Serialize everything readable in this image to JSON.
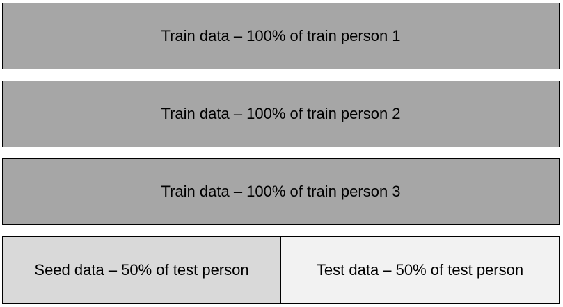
{
  "train_blocks": [
    {
      "label": "Train data – 100% of train person 1"
    },
    {
      "label": "Train data – 100% of train person 2"
    },
    {
      "label": "Train data – 100% of train person 3"
    }
  ],
  "split_row": {
    "seed": {
      "label": "Seed data – 50% of test person"
    },
    "test": {
      "label": "Test data – 50% of test person"
    }
  },
  "colors": {
    "train_fill": "#a6a6a6",
    "seed_fill": "#d9d9d9",
    "test_fill": "#f2f2f2",
    "border": "#000000",
    "text": "#000000"
  }
}
